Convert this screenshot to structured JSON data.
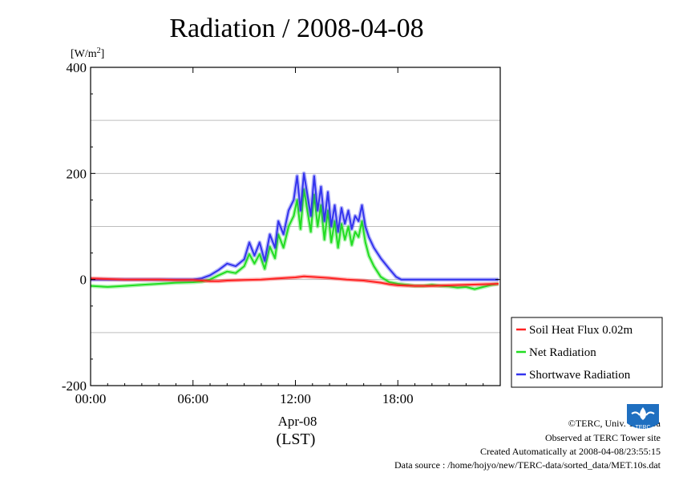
{
  "chart_data": {
    "type": "line",
    "title": "Radiation / 2008-04-08",
    "ylabel_unit": "W/m",
    "ylabel_sup": "2",
    "ylim": [
      -200,
      400
    ],
    "yticks": [
      "-200",
      "0",
      "200",
      "400"
    ],
    "xlim_hours": [
      0,
      24
    ],
    "xticks": [
      "00:00",
      "06:00",
      "12:00",
      "18:00"
    ],
    "date_label": "Apr-08",
    "tz_label": "(LST)",
    "grid": true,
    "legend_position": "right-bottom",
    "series": [
      {
        "name": "Soil Heat Flux 0.02m",
        "color": "#ff2222",
        "x": [
          0,
          1,
          2,
          3,
          4,
          5,
          6,
          6.5,
          7,
          7.5,
          8,
          9,
          10,
          11,
          12,
          12.5,
          13,
          14,
          15,
          16,
          17,
          17.5,
          18,
          19,
          20,
          21,
          22,
          23,
          23.9
        ],
        "y": [
          2,
          1,
          0,
          0,
          0,
          -1,
          -1,
          -2,
          -3,
          -3,
          -2,
          -1,
          0,
          2,
          4,
          6,
          5,
          3,
          0,
          -2,
          -6,
          -9,
          -11,
          -12,
          -12,
          -11,
          -10,
          -9,
          -8
        ]
      },
      {
        "name": "Net Radiation",
        "color": "#22dd22",
        "x": [
          0,
          1,
          2,
          3,
          4,
          5,
          6,
          6.5,
          7,
          7.5,
          8,
          8.5,
          9,
          9.3,
          9.6,
          9.9,
          10.2,
          10.5,
          10.8,
          11,
          11.3,
          11.6,
          11.9,
          12.1,
          12.3,
          12.5,
          12.7,
          12.9,
          13.1,
          13.3,
          13.5,
          13.7,
          13.9,
          14.1,
          14.3,
          14.5,
          14.7,
          14.9,
          15.1,
          15.3,
          15.5,
          15.7,
          15.9,
          16.1,
          16.3,
          16.6,
          17,
          17.5,
          18,
          18.5,
          19,
          19.5,
          20,
          20.5,
          21,
          21.5,
          22,
          22.5,
          23,
          23.5,
          23.9
        ],
        "y": [
          -12,
          -14,
          -12,
          -10,
          -8,
          -6,
          -5,
          -4,
          0,
          8,
          15,
          12,
          25,
          48,
          30,
          48,
          20,
          62,
          40,
          85,
          60,
          100,
          120,
          150,
          95,
          170,
          130,
          90,
          160,
          100,
          140,
          75,
          130,
          70,
          110,
          60,
          105,
          75,
          100,
          65,
          90,
          80,
          110,
          70,
          45,
          25,
          5,
          -5,
          -8,
          -10,
          -12,
          -12,
          -10,
          -12,
          -13,
          -15,
          -14,
          -18,
          -14,
          -10,
          -8
        ]
      },
      {
        "name": "Shortwave Radiation",
        "color": "#3333ee",
        "x": [
          0,
          1,
          2,
          3,
          4,
          5,
          6,
          6.5,
          7,
          7.5,
          8,
          8.5,
          9,
          9.3,
          9.6,
          9.9,
          10.2,
          10.5,
          10.8,
          11,
          11.3,
          11.6,
          11.9,
          12.1,
          12.3,
          12.5,
          12.7,
          12.9,
          13.1,
          13.3,
          13.5,
          13.7,
          13.9,
          14.1,
          14.3,
          14.5,
          14.7,
          14.9,
          15.1,
          15.3,
          15.5,
          15.7,
          15.9,
          16.1,
          16.3,
          16.6,
          17,
          17.5,
          17.9,
          18.2,
          19,
          20,
          21,
          22,
          23,
          23.9
        ],
        "y": [
          0,
          0,
          0,
          0,
          0,
          0,
          0,
          2,
          8,
          18,
          30,
          25,
          38,
          70,
          45,
          70,
          35,
          85,
          60,
          110,
          85,
          130,
          150,
          195,
          130,
          200,
          160,
          120,
          195,
          130,
          175,
          110,
          165,
          100,
          140,
          90,
          135,
          105,
          130,
          95,
          120,
          110,
          140,
          100,
          80,
          60,
          40,
          20,
          5,
          0,
          0,
          0,
          0,
          0,
          0,
          0
        ]
      }
    ]
  },
  "credits": {
    "copyright": "©TERC, Univ. Tsukuba",
    "observed": "Observed at TERC Tower site",
    "created": "Created Automatically at 2008-04-08/23:55:15",
    "source": "Data source : /home/hojyo/new/TERC-data/sorted_data/MET.10s.dat",
    "logo_text": "TERC"
  }
}
